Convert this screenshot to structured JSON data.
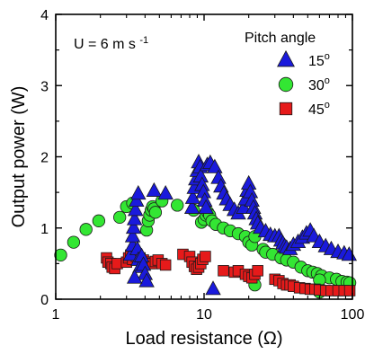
{
  "chart_data": {
    "type": "scatter",
    "title": "",
    "xlabel": "Load resistance (Ω)",
    "ylabel": "Output power (W)",
    "x_scale": "log",
    "xlim": [
      1,
      100
    ],
    "ylim": [
      0,
      4
    ],
    "x_ticks": [
      1,
      10,
      100
    ],
    "y_ticks": [
      0,
      1,
      2,
      3,
      4
    ],
    "grid": false,
    "annotation": {
      "base": "U = 6 m s",
      "sup": "-1"
    },
    "legend": {
      "title": "Pitch angle",
      "placement": "top-right",
      "entries": [
        {
          "base": "15",
          "sup": "o",
          "series": 0
        },
        {
          "base": "30",
          "sup": "o",
          "series": 1
        },
        {
          "base": "45",
          "sup": "o",
          "series": 2
        }
      ]
    },
    "series": [
      {
        "marker": "triangle",
        "color": "#1a1adc",
        "points": [
          [
            3.2,
            0.62
          ],
          [
            3.3,
            0.75
          ],
          [
            3.3,
            0.88
          ],
          [
            3.35,
            1.0
          ],
          [
            3.4,
            1.12
          ],
          [
            3.45,
            1.25
          ],
          [
            3.5,
            1.38
          ],
          [
            3.6,
            1.48
          ],
          [
            3.55,
            0.7
          ],
          [
            3.6,
            0.55
          ],
          [
            3.7,
            0.45
          ],
          [
            3.8,
            0.6
          ],
          [
            3.9,
            0.48
          ],
          [
            4.0,
            0.35
          ],
          [
            4.1,
            0.25
          ],
          [
            3.4,
            0.3
          ],
          [
            4.6,
            1.52
          ],
          [
            5.5,
            1.48
          ],
          [
            8.3,
            1.28
          ],
          [
            8.4,
            1.42
          ],
          [
            8.6,
            1.56
          ],
          [
            8.8,
            1.68
          ],
          [
            9.0,
            1.8
          ],
          [
            9.2,
            1.92
          ],
          [
            9.4,
            1.85
          ],
          [
            9.5,
            1.72
          ],
          [
            9.7,
            1.6
          ],
          [
            9.9,
            1.5
          ],
          [
            10.1,
            1.38
          ],
          [
            10.3,
            1.28
          ],
          [
            10.5,
            1.88
          ],
          [
            11.0,
            1.91
          ],
          [
            11.8,
            1.85
          ],
          [
            11.5,
            0.14
          ],
          [
            12.5,
            1.7
          ],
          [
            13.0,
            1.58
          ],
          [
            13.6,
            1.48
          ],
          [
            14.2,
            1.4
          ],
          [
            15.0,
            1.32
          ],
          [
            16.0,
            1.25
          ],
          [
            17.0,
            1.2
          ],
          [
            18.5,
            1.28
          ],
          [
            19.0,
            1.4
          ],
          [
            19.5,
            1.52
          ],
          [
            20.0,
            1.62
          ],
          [
            20.5,
            1.5
          ],
          [
            21.0,
            1.38
          ],
          [
            21.5,
            1.28
          ],
          [
            22.0,
            1.2
          ],
          [
            22.5,
            1.12
          ],
          [
            23.0,
            1.06
          ],
          [
            24.0,
            1.0
          ],
          [
            26.0,
            0.95
          ],
          [
            28.0,
            0.9
          ],
          [
            30.0,
            0.88
          ],
          [
            32.0,
            0.88
          ],
          [
            33.0,
            0.82
          ],
          [
            34.0,
            0.78
          ],
          [
            35.0,
            0.74
          ],
          [
            36.0,
            0.72
          ],
          [
            38.0,
            0.7
          ],
          [
            40.0,
            0.76
          ],
          [
            43.0,
            0.8
          ],
          [
            46.0,
            0.86
          ],
          [
            49.0,
            0.92
          ],
          [
            52.0,
            0.96
          ],
          [
            55.0,
            0.88
          ],
          [
            60.0,
            0.8
          ],
          [
            66.0,
            0.74
          ],
          [
            72.0,
            0.7
          ],
          [
            80.0,
            0.66
          ],
          [
            88.0,
            0.64
          ],
          [
            95.0,
            0.62
          ]
        ]
      },
      {
        "marker": "circle",
        "color": "#33e633",
        "points": [
          [
            1.08,
            0.62
          ],
          [
            1.32,
            0.8
          ],
          [
            1.6,
            0.98
          ],
          [
            1.95,
            1.1
          ],
          [
            2.7,
            1.15
          ],
          [
            3.0,
            1.3
          ],
          [
            3.3,
            1.35
          ],
          [
            4.1,
            0.97
          ],
          [
            4.2,
            1.1
          ],
          [
            4.3,
            1.18
          ],
          [
            4.4,
            1.25
          ],
          [
            4.5,
            1.3
          ],
          [
            4.6,
            1.27
          ],
          [
            4.7,
            1.22
          ],
          [
            5.2,
            1.38
          ],
          [
            6.6,
            1.32
          ],
          [
            8.5,
            1.25
          ],
          [
            9.6,
            1.08
          ],
          [
            10.0,
            1.12
          ],
          [
            10.3,
            1.18
          ],
          [
            10.6,
            1.22
          ],
          [
            10.9,
            1.18
          ],
          [
            11.3,
            1.1
          ],
          [
            12.0,
            1.05
          ],
          [
            13.5,
            1.0
          ],
          [
            15.0,
            0.96
          ],
          [
            17.0,
            0.92
          ],
          [
            19.0,
            0.88
          ],
          [
            20.0,
            0.8
          ],
          [
            21.0,
            0.76
          ],
          [
            22.0,
            0.88
          ],
          [
            25.0,
            0.7
          ],
          [
            26.0,
            0.66
          ],
          [
            29.0,
            0.63
          ],
          [
            33.0,
            0.58
          ],
          [
            36.0,
            0.55
          ],
          [
            40.0,
            0.52
          ],
          [
            45.0,
            0.45
          ],
          [
            50.0,
            0.4
          ],
          [
            54.0,
            0.38
          ],
          [
            58.0,
            0.36
          ],
          [
            62.0,
            0.33
          ],
          [
            70.0,
            0.3
          ],
          [
            78.0,
            0.28
          ],
          [
            85.0,
            0.25
          ],
          [
            92.0,
            0.24
          ],
          [
            96.0,
            0.23
          ],
          [
            60.0,
            0.27
          ],
          [
            60.0,
            0.1
          ],
          [
            22.0,
            0.2
          ]
        ]
      },
      {
        "marker": "square",
        "color": "#e61a1a",
        "points": [
          [
            2.2,
            0.58
          ],
          [
            2.25,
            0.52
          ],
          [
            2.35,
            0.5
          ],
          [
            2.4,
            0.45
          ],
          [
            2.5,
            0.43
          ],
          [
            2.6,
            0.5
          ],
          [
            3.0,
            0.52
          ],
          [
            3.1,
            0.58
          ],
          [
            3.2,
            0.62
          ],
          [
            3.3,
            0.56
          ],
          [
            3.5,
            0.6
          ],
          [
            3.7,
            0.58
          ],
          [
            3.9,
            0.55
          ],
          [
            4.1,
            0.52
          ],
          [
            4.3,
            0.5
          ],
          [
            4.5,
            0.5
          ],
          [
            4.7,
            0.53
          ],
          [
            4.9,
            0.55
          ],
          [
            5.2,
            0.5
          ],
          [
            5.5,
            0.48
          ],
          [
            7.2,
            0.63
          ],
          [
            8.0,
            0.6
          ],
          [
            8.3,
            0.52
          ],
          [
            8.6,
            0.46
          ],
          [
            8.9,
            0.42
          ],
          [
            9.2,
            0.45
          ],
          [
            9.5,
            0.5
          ],
          [
            9.8,
            0.56
          ],
          [
            10.2,
            0.6
          ],
          [
            13.5,
            0.4
          ],
          [
            16.0,
            0.38
          ],
          [
            17.0,
            0.4
          ],
          [
            19.0,
            0.35
          ],
          [
            20.0,
            0.32
          ],
          [
            21.0,
            0.3
          ],
          [
            22.0,
            0.35
          ],
          [
            23.0,
            0.4
          ],
          [
            30.0,
            0.28
          ],
          [
            32.0,
            0.26
          ],
          [
            34.0,
            0.22
          ],
          [
            36.0,
            0.2
          ],
          [
            38.0,
            0.2
          ],
          [
            40.0,
            0.18
          ],
          [
            44.0,
            0.16
          ],
          [
            48.0,
            0.15
          ],
          [
            52.0,
            0.14
          ],
          [
            56.0,
            0.14
          ],
          [
            60.0,
            0.13
          ],
          [
            66.0,
            0.12
          ],
          [
            72.0,
            0.12
          ],
          [
            80.0,
            0.12
          ],
          [
            88.0,
            0.12
          ],
          [
            96.0,
            0.12
          ]
        ]
      }
    ]
  }
}
